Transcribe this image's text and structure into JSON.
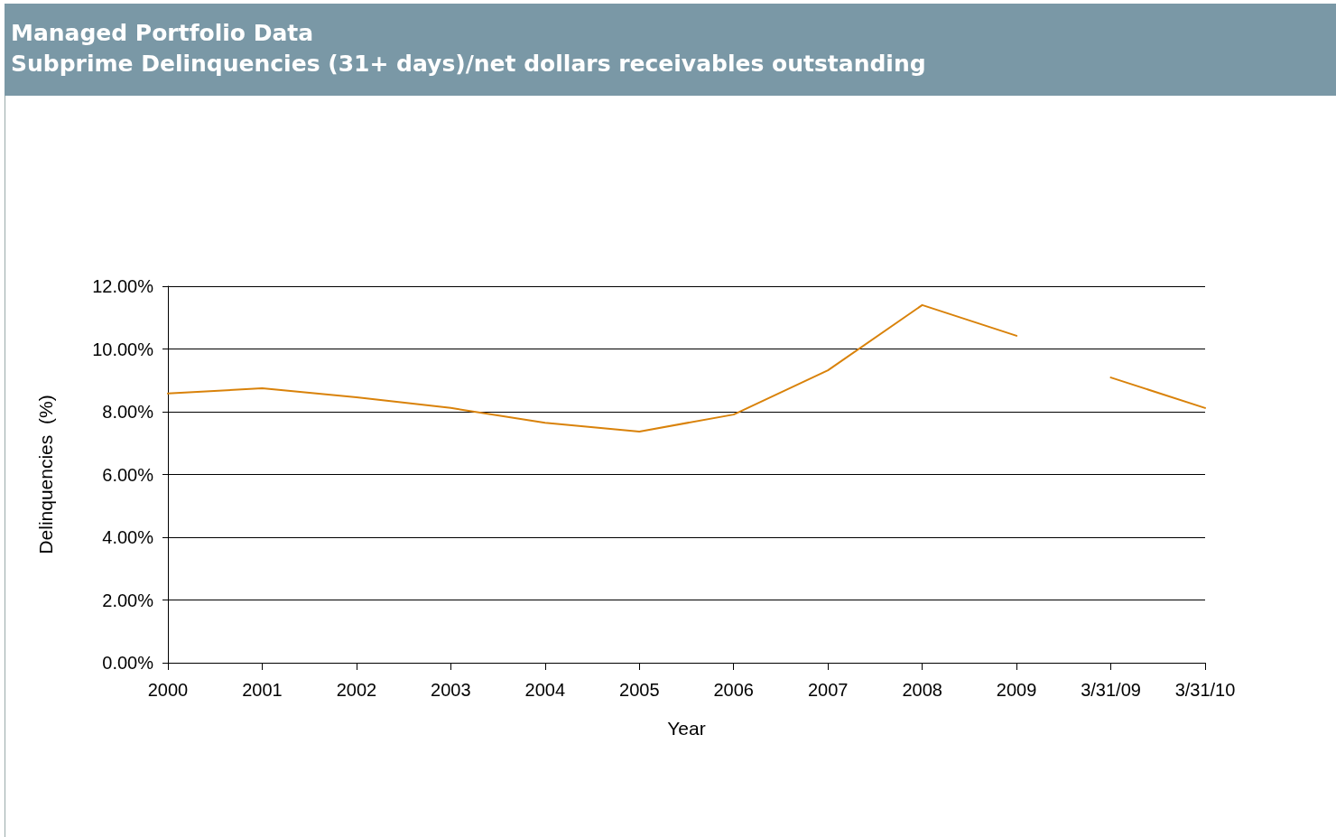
{
  "chart_data": {
    "type": "line",
    "title": "Managed Portfolio Data",
    "subtitle": "Subprime Delinquencies (31+ days)/net dollars receivables outstanding",
    "xlabel": "Year",
    "ylabel": "Delinquencies  (%)",
    "categories": [
      "2000",
      "2001",
      "2002",
      "2003",
      "2004",
      "2005",
      "2006",
      "2007",
      "2008",
      "2009",
      "3/31/09",
      "3/31/10"
    ],
    "series": [
      {
        "color": "#d9820a",
        "values": [
          8.58,
          8.75,
          8.46,
          8.12,
          7.65,
          7.37,
          7.91,
          9.32,
          11.4,
          10.42,
          null,
          null
        ]
      },
      {
        "color": "#d9820a",
        "values": [
          null,
          null,
          null,
          null,
          null,
          null,
          null,
          null,
          null,
          null,
          9.09,
          8.12
        ]
      }
    ],
    "ylim": [
      0,
      12
    ],
    "yticks": [
      {
        "value": 0,
        "label": "0.00%"
      },
      {
        "value": 2,
        "label": "2.00%"
      },
      {
        "value": 4,
        "label": "4.00%"
      },
      {
        "value": 6,
        "label": "6.00%"
      },
      {
        "value": 8,
        "label": "8.00%"
      },
      {
        "value": 10,
        "label": "10.00%"
      },
      {
        "value": 12,
        "label": "12.00%"
      }
    ],
    "grid": "y",
    "marker": "none",
    "line_style": "solid"
  }
}
